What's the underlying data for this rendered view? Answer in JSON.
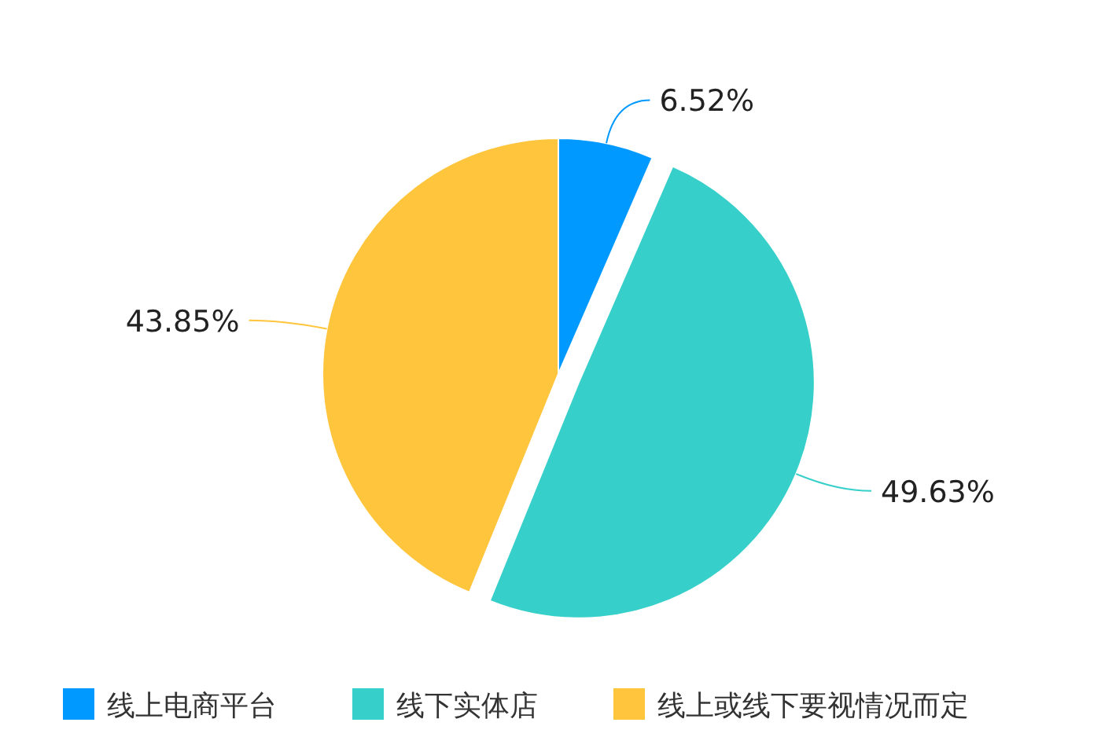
{
  "chart_data": {
    "type": "pie",
    "categories": [
      "线上电商平台",
      "线下实体店",
      "线上或线下要视情况而定"
    ],
    "values": [
      6.52,
      49.63,
      43.85
    ],
    "value_labels": [
      "6.52%",
      "49.63%",
      "43.85%"
    ],
    "colors": [
      "#0099ff",
      "#36cfc9",
      "#ffc53d"
    ],
    "legend": "bottom"
  }
}
